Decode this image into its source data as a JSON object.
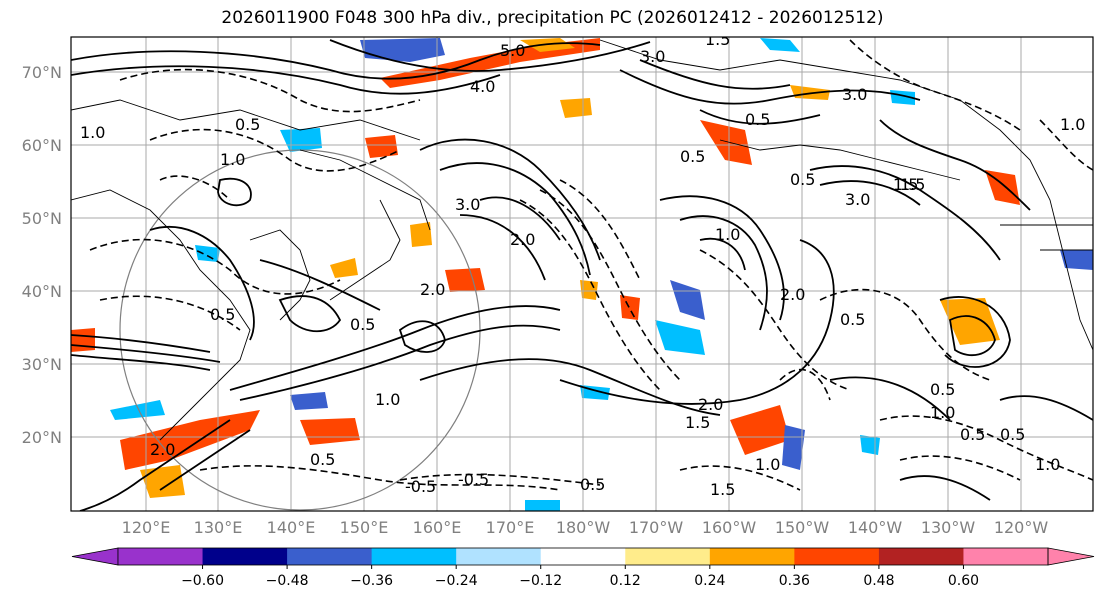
{
  "title": "2026011900 F048 300 hPa div., precipitation PC (2026012412 - 2026012512)",
  "lat_ticks": [
    "70°N",
    "60°N",
    "50°N",
    "40°N",
    "30°N",
    "20°N"
  ],
  "lon_ticks": [
    "120°E",
    "130°E",
    "140°E",
    "150°E",
    "160°E",
    "170°E",
    "180°W",
    "170°W",
    "160°W",
    "150°W",
    "140°W",
    "130°W",
    "120°W"
  ],
  "colorbar": {
    "colors": [
      "#9932cc",
      "#00008b",
      "#3a5fcd",
      "#00bfff",
      "#b0e2ff",
      "#ffffff",
      "#ffec8b",
      "#ffa500",
      "#ff4500",
      "#b22222",
      "#ff82ab"
    ],
    "over_color": "#ff82ab",
    "under_color": "#9932cc",
    "labels": [
      "−0.60",
      "−0.48",
      "−0.36",
      "−0.24",
      "−0.12",
      "0.12",
      "0.24",
      "0.36",
      "0.48",
      "0.60"
    ]
  },
  "contour_labels": [
    "5.0",
    "3.0",
    "1.5",
    "4.0",
    "3.0",
    "0.5",
    "1.0",
    "3.0",
    "2.0",
    "0.5",
    "1.0",
    "2.0",
    "3.0",
    "1.5",
    "0.5",
    "2.0",
    "1.0",
    "0.5",
    "0.5",
    "2.0",
    "1.5",
    "0.5",
    "1.0",
    "1.5",
    "2.0",
    "0.5",
    "1.0",
    "0.5",
    "1.0",
    "0.5",
    "-0.5",
    "0.5",
    "-0.5",
    "1.5",
    "1.0",
    "0.5",
    "0.5",
    "1.0"
  ]
}
